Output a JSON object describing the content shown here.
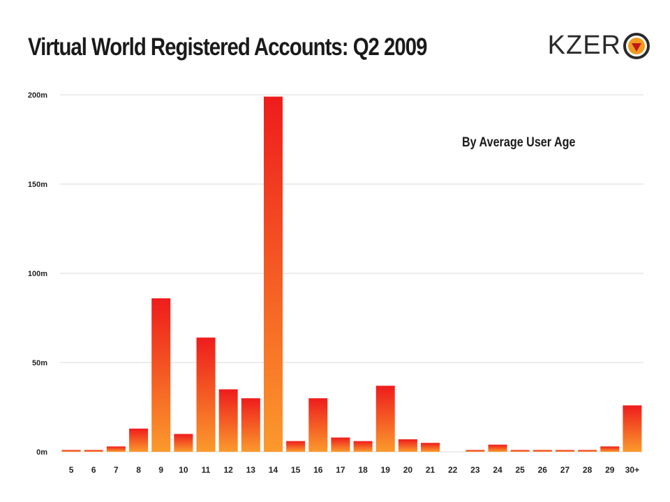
{
  "chart_data": {
    "type": "bar",
    "title": "Virtual World Registered Accounts: Q2 2009",
    "subtitle": "By Average User Age",
    "xlabel": "",
    "ylabel": "",
    "categories": [
      "5",
      "6",
      "7",
      "8",
      "9",
      "10",
      "11",
      "12",
      "13",
      "14",
      "15",
      "16",
      "17",
      "18",
      "19",
      "20",
      "21",
      "22",
      "23",
      "24",
      "25",
      "26",
      "27",
      "28",
      "29",
      "30+"
    ],
    "values": [
      1,
      1,
      3,
      13,
      86,
      10,
      64,
      35,
      30,
      199,
      6,
      30,
      8,
      6,
      37,
      7,
      5,
      0,
      1,
      4,
      1,
      1,
      1,
      1,
      3,
      26
    ],
    "ylim": [
      0,
      200
    ],
    "yticks": [
      0,
      50,
      100,
      150,
      200
    ],
    "ytick_labels": [
      "0m",
      "50m",
      "100m",
      "150m",
      "200m"
    ],
    "grid": true,
    "legend": "none",
    "colors": {
      "bar_top": "#ee1c1c",
      "bar_bottom": "#fb9a2c",
      "grid": "#e6e6e6"
    }
  },
  "brand": {
    "logo_text": "KZER",
    "logo_icon": "kzero-o-mark"
  }
}
